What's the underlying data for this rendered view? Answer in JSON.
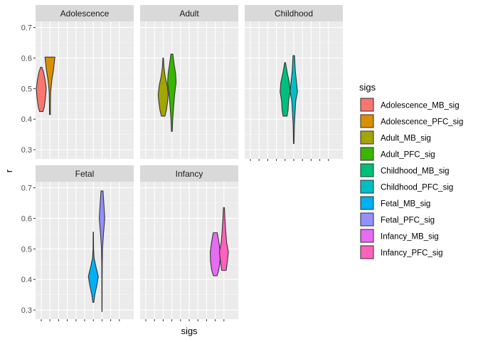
{
  "chart_data": {
    "type": "violin",
    "xlabel": "sigs",
    "ylabel": "r",
    "ylim": [
      0.27,
      0.72
    ],
    "yticks": [
      0.3,
      0.4,
      0.5,
      0.6,
      0.7
    ],
    "ytick_labels": [
      "0.3",
      "0.4",
      "0.5",
      "0.6",
      "0.7"
    ],
    "x_ticks": 10,
    "grid": true,
    "legend": {
      "title": "sigs",
      "placement": "right",
      "entries": [
        {
          "label": "Adolescence_MB_sig",
          "color": "#F8766D"
        },
        {
          "label": "Adolescence_PFC_sig",
          "color": "#D89000"
        },
        {
          "label": "Adult_MB_sig",
          "color": "#A3A500"
        },
        {
          "label": "Adult_PFC_sig",
          "color": "#39B600"
        },
        {
          "label": "Childhood_MB_sig",
          "color": "#00BF7D"
        },
        {
          "label": "Childhood_PFC_sig",
          "color": "#00BFC4"
        },
        {
          "label": "Fetal_MB_sig",
          "color": "#00B0F6"
        },
        {
          "label": "Fetal_PFC_sig",
          "color": "#9590FF"
        },
        {
          "label": "Infancy_MB_sig",
          "color": "#E76BF3"
        },
        {
          "label": "Infancy_PFC_sig",
          "color": "#FF62BC"
        }
      ]
    },
    "facets": [
      {
        "title": "Adolescence",
        "violins": [
          {
            "series": 0,
            "pos": 1,
            "profile": [
              [
                0.425,
                0.35
              ],
              [
                0.44,
                0.6
              ],
              [
                0.47,
                0.85
              ],
              [
                0.5,
                1.0
              ],
              [
                0.53,
                0.75
              ],
              [
                0.555,
                0.45
              ],
              [
                0.57,
                0.12
              ]
            ]
          },
          {
            "series": 1,
            "pos": 2,
            "profile": [
              [
                0.415,
                0.1
              ],
              [
                0.45,
                0.1
              ],
              [
                0.49,
                0.15
              ],
              [
                0.53,
                0.4
              ],
              [
                0.56,
                0.7
              ],
              [
                0.59,
                0.9
              ],
              [
                0.603,
                1.0
              ]
            ]
          }
        ]
      },
      {
        "title": "Adult",
        "violins": [
          {
            "series": 2,
            "pos": 3,
            "profile": [
              [
                0.41,
                0.35
              ],
              [
                0.43,
                0.65
              ],
              [
                0.46,
                0.9
              ],
              [
                0.48,
                1.0
              ],
              [
                0.51,
                0.8
              ],
              [
                0.54,
                0.4
              ],
              [
                0.57,
                0.15
              ],
              [
                0.6,
                0.05
              ]
            ]
          },
          {
            "series": 3,
            "pos": 4,
            "profile": [
              [
                0.36,
                0.08
              ],
              [
                0.4,
                0.18
              ],
              [
                0.44,
                0.35
              ],
              [
                0.48,
                0.55
              ],
              [
                0.52,
                0.85
              ],
              [
                0.55,
                0.75
              ],
              [
                0.58,
                0.45
              ],
              [
                0.613,
                0.2
              ]
            ]
          }
        ]
      },
      {
        "title": "Childhood",
        "violins": [
          {
            "series": 4,
            "pos": 5,
            "profile": [
              [
                0.41,
                0.4
              ],
              [
                0.43,
                0.6
              ],
              [
                0.46,
                0.7
              ],
              [
                0.49,
                1.0
              ],
              [
                0.52,
                0.85
              ],
              [
                0.55,
                0.45
              ],
              [
                0.585,
                0.08
              ]
            ]
          },
          {
            "series": 5,
            "pos": 6,
            "profile": [
              [
                0.32,
                0.05
              ],
              [
                0.38,
                0.12
              ],
              [
                0.42,
                0.25
              ],
              [
                0.46,
                0.4
              ],
              [
                0.49,
                0.75
              ],
              [
                0.52,
                0.55
              ],
              [
                0.56,
                0.3
              ],
              [
                0.608,
                0.15
              ]
            ]
          }
        ]
      },
      {
        "title": "Fetal",
        "violins": [
          {
            "series": 6,
            "pos": 7,
            "profile": [
              [
                0.325,
                0.1
              ],
              [
                0.35,
                0.3
              ],
              [
                0.38,
                0.7
              ],
              [
                0.41,
                1.0
              ],
              [
                0.44,
                0.55
              ],
              [
                0.47,
                0.15
              ],
              [
                0.5,
                0.05
              ],
              [
                0.555,
                0.03
              ]
            ]
          },
          {
            "series": 7,
            "pos": 8,
            "profile": [
              [
                0.295,
                0.02
              ],
              [
                0.38,
                0.03
              ],
              [
                0.45,
                0.05
              ],
              [
                0.5,
                0.1
              ],
              [
                0.55,
                0.3
              ],
              [
                0.6,
                0.55
              ],
              [
                0.64,
                0.4
              ],
              [
                0.69,
                0.2
              ]
            ]
          }
        ]
      },
      {
        "title": "Infancy",
        "violins": [
          {
            "series": 8,
            "pos": 9,
            "profile": [
              [
                0.412,
                0.35
              ],
              [
                0.43,
                0.7
              ],
              [
                0.46,
                0.95
              ],
              [
                0.49,
                1.0
              ],
              [
                0.52,
                0.75
              ],
              [
                0.553,
                0.4
              ]
            ]
          },
          {
            "series": 9,
            "pos": 10,
            "profile": [
              [
                0.43,
                0.45
              ],
              [
                0.46,
                0.7
              ],
              [
                0.49,
                0.9
              ],
              [
                0.52,
                0.55
              ],
              [
                0.56,
                0.35
              ],
              [
                0.6,
                0.2
              ],
              [
                0.635,
                0.1
              ]
            ]
          }
        ]
      }
    ]
  }
}
